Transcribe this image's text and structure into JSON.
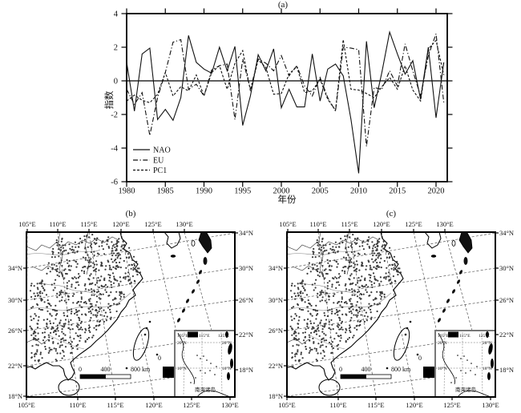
{
  "panel_a": {
    "title": "(a)",
    "ylabel": "指数",
    "xlabel": "年份",
    "ytick_labels": [
      "4",
      "2",
      "0",
      "-2",
      "-4",
      "-6"
    ],
    "xtick_labels": [
      "1980",
      "1985",
      "1990",
      "1995",
      "2000",
      "2005",
      "2010",
      "2015",
      "2020"
    ],
    "legend": [
      {
        "label": "NAO",
        "style": "solid"
      },
      {
        "label": "EU",
        "style": "dash-dot"
      },
      {
        "label": "PC1",
        "style": "dashed"
      }
    ],
    "line_color": "#111111"
  },
  "chart_data": {
    "type": "line",
    "title": "(a)",
    "xlabel": "年份",
    "ylabel": "指数",
    "xlim": [
      1980,
      2021
    ],
    "ylim": [
      -6,
      4
    ],
    "grid": false,
    "zero_line": true,
    "legend_position": "lower-left",
    "x": [
      1980,
      1981,
      1982,
      1983,
      1984,
      1985,
      1986,
      1987,
      1988,
      1989,
      1990,
      1991,
      1992,
      1993,
      1994,
      1995,
      1996,
      1997,
      1998,
      1999,
      2000,
      2001,
      2002,
      2003,
      2004,
      2005,
      2006,
      2007,
      2008,
      2009,
      2010,
      2011,
      2012,
      2013,
      2014,
      2015,
      2016,
      2017,
      2018,
      2019,
      2020,
      2021
    ],
    "series": [
      {
        "name": "NAO",
        "line_style": "solid",
        "values": [
          1.1,
          -1.8,
          1.6,
          1.95,
          -2.3,
          -1.7,
          -2.35,
          -1.0,
          2.7,
          1.1,
          0.7,
          0.45,
          2.0,
          0.6,
          2.05,
          -2.65,
          -0.9,
          1.55,
          0.6,
          1.9,
          -1.6,
          -0.5,
          -1.55,
          -1.55,
          1.6,
          -1.2,
          0.7,
          1.0,
          0.3,
          -2.3,
          -5.5,
          2.35,
          -1.6,
          0.5,
          2.9,
          1.6,
          0.4,
          1.2,
          -1.1,
          2.0,
          -2.2,
          1.1
        ]
      },
      {
        "name": "EU",
        "line_style": "dash-dot",
        "values": [
          -0.5,
          -1.4,
          -0.7,
          -3.25,
          -1.0,
          0.5,
          2.3,
          2.45,
          -0.5,
          -0.2,
          -0.9,
          0.65,
          0.9,
          1.0,
          -2.3,
          1.3,
          -0.5,
          1.3,
          1.05,
          0.6,
          1.5,
          0.3,
          0.9,
          -0.3,
          -0.9,
          0.2,
          -1.0,
          -1.8,
          2.0,
          1.95,
          1.85,
          -3.9,
          -0.4,
          -0.5,
          0.6,
          -0.3,
          2.2,
          0.6,
          -0.9,
          1.5,
          2.8,
          -1.3
        ]
      },
      {
        "name": "PC1",
        "line_style": "dashed",
        "values": [
          -1.2,
          -0.85,
          -1.15,
          -1.3,
          -0.8,
          0.5,
          -0.9,
          -0.35,
          -0.6,
          0.35,
          -0.9,
          0.5,
          0.9,
          -0.5,
          1.05,
          1.8,
          -0.6,
          1.25,
          0.8,
          -0.8,
          -0.75,
          0.4,
          0.85,
          -0.7,
          -0.6,
          0.1,
          -1.1,
          -1.75,
          2.45,
          -0.5,
          -0.55,
          -0.75,
          -1.0,
          -0.35,
          0.2,
          -0.5,
          0.9,
          -0.55,
          -1.2,
          1.9,
          2.4,
          0.35
        ]
      }
    ]
  },
  "maps": {
    "panels": [
      {
        "title": "(b)"
      },
      {
        "title": "(c)"
      }
    ],
    "top_lon_labels": [
      "105°E",
      "110°E",
      "115°E",
      "120°E",
      "125°E",
      "130°E"
    ],
    "bottom_lon_labels": [
      "105°E",
      "110°E",
      "115°E",
      "120°E",
      "125°E",
      "130°E"
    ],
    "left_lat_labels": [
      "34°N",
      "30°N",
      "26°N",
      "22°N",
      "18°N"
    ],
    "right_lat_labels": [
      "34°N",
      "30°N",
      "26°N",
      "22°N",
      "18°N"
    ],
    "scale_bar": {
      "labels": [
        "0",
        "400",
        "800 km"
      ]
    },
    "zero_label": "0",
    "inset": {
      "lon_labels": [
        "105°E",
        "115°E",
        "125°E"
      ],
      "lat_label_20": "20°N",
      "lat_label_10": "10°N",
      "caption": "南海诸岛"
    }
  }
}
